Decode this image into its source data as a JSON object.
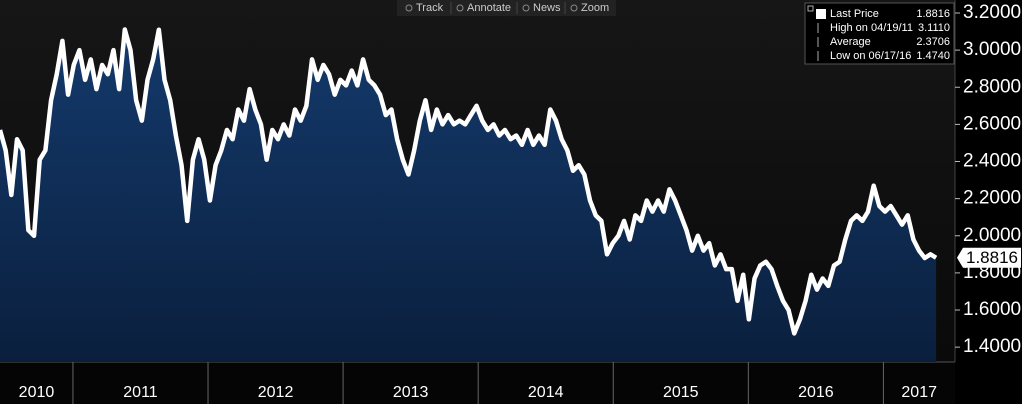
{
  "toolbar": [
    "Track",
    "Annotate",
    "News",
    "Zoom"
  ],
  "chart_data": {
    "type": "area-line",
    "xlim": [
      2010.46,
      2017.53
    ],
    "xticks": [
      2010,
      2011,
      2012,
      2013,
      2014,
      2015,
      2016,
      2017
    ],
    "ylim": [
      1.32,
      3.27
    ],
    "yticks": [
      {
        "value": 1.4,
        "label": "1.4000"
      },
      {
        "value": 1.6,
        "label": "1.6000"
      },
      {
        "value": 1.8,
        "label": "1.8000"
      },
      {
        "value": 2.0,
        "label": "2.0000"
      },
      {
        "value": 2.2,
        "label": "2.2000"
      },
      {
        "value": 2.4,
        "label": "2.4000"
      },
      {
        "value": 2.6,
        "label": "2.6000"
      },
      {
        "value": 2.8,
        "label": "2.8000"
      },
      {
        "value": 3.0,
        "label": "3.0000"
      },
      {
        "value": 3.2,
        "label": "3.2000"
      }
    ],
    "grid": false,
    "legend_items": [
      {
        "label": "Last Price",
        "value": "1.8816"
      },
      {
        "label": "High on 04/19/11",
        "value": "3.1110"
      },
      {
        "label": "Average",
        "value": "2.3706"
      },
      {
        "label": "Low on 06/17/16",
        "value": "1.4740"
      }
    ],
    "series": [
      {
        "color": "#ffffff",
        "fill": "#0f3261",
        "x": [
          2010.46,
          2010.502,
          2010.544,
          2010.586,
          2010.628,
          2010.67,
          2010.712,
          2010.754,
          2010.796,
          2010.838,
          2010.88,
          2010.922,
          2010.964,
          2011.006,
          2011.048,
          2011.09,
          2011.132,
          2011.174,
          2011.216,
          2011.258,
          2011.3,
          2011.342,
          2011.384,
          2011.426,
          2011.468,
          2011.51,
          2011.552,
          2011.594,
          2011.636,
          2011.678,
          2011.72,
          2011.762,
          2011.804,
          2011.846,
          2011.888,
          2011.93,
          2011.972,
          2012.014,
          2012.056,
          2012.098,
          2012.14,
          2012.182,
          2012.224,
          2012.266,
          2012.308,
          2012.35,
          2012.392,
          2012.434,
          2012.476,
          2012.518,
          2012.56,
          2012.602,
          2012.644,
          2012.686,
          2012.728,
          2012.77,
          2012.812,
          2012.854,
          2012.896,
          2012.938,
          2012.98,
          2013.022,
          2013.064,
          2013.106,
          2013.148,
          2013.19,
          2013.232,
          2013.274,
          2013.316,
          2013.358,
          2013.4,
          2013.442,
          2013.484,
          2013.526,
          2013.568,
          2013.61,
          2013.652,
          2013.694,
          2013.736,
          2013.778,
          2013.82,
          2013.862,
          2013.904,
          2013.946,
          2013.988,
          2014.03,
          2014.072,
          2014.114,
          2014.156,
          2014.198,
          2014.24,
          2014.282,
          2014.324,
          2014.366,
          2014.408,
          2014.45,
          2014.492,
          2014.534,
          2014.576,
          2014.618,
          2014.66,
          2014.702,
          2014.744,
          2014.786,
          2014.828,
          2014.87,
          2014.912,
          2014.954,
          2014.996,
          2015.038,
          2015.08,
          2015.122,
          2015.164,
          2015.206,
          2015.248,
          2015.29,
          2015.332,
          2015.374,
          2015.416,
          2015.458,
          2015.5,
          2015.542,
          2015.584,
          2015.626,
          2015.668,
          2015.71,
          2015.752,
          2015.794,
          2015.836,
          2015.878,
          2015.92,
          2015.962,
          2016.004,
          2016.046,
          2016.088,
          2016.13,
          2016.172,
          2016.214,
          2016.256,
          2016.298,
          2016.34,
          2016.382,
          2016.424,
          2016.466,
          2016.508,
          2016.55,
          2016.592,
          2016.634,
          2016.676,
          2016.718,
          2016.76,
          2016.802,
          2016.844,
          2016.886,
          2016.928,
          2016.97,
          2017.012,
          2017.054,
          2017.096,
          2017.138,
          2017.18,
          2017.222,
          2017.264,
          2017.306,
          2017.348,
          2017.39
        ],
        "values": [
          2.57,
          2.46,
          2.22,
          2.52,
          2.46,
          2.03,
          2.0,
          2.41,
          2.46,
          2.73,
          2.87,
          3.05,
          2.76,
          2.92,
          3.0,
          2.84,
          2.95,
          2.79,
          2.92,
          2.87,
          3.0,
          2.79,
          3.111,
          3.0,
          2.73,
          2.62,
          2.84,
          2.95,
          3.11,
          2.84,
          2.73,
          2.54,
          2.38,
          2.08,
          2.41,
          2.52,
          2.41,
          2.19,
          2.38,
          2.46,
          2.57,
          2.52,
          2.68,
          2.62,
          2.79,
          2.68,
          2.6,
          2.41,
          2.57,
          2.52,
          2.6,
          2.54,
          2.68,
          2.62,
          2.7,
          2.95,
          2.84,
          2.92,
          2.87,
          2.76,
          2.84,
          2.81,
          2.89,
          2.81,
          2.95,
          2.84,
          2.81,
          2.76,
          2.65,
          2.68,
          2.52,
          2.41,
          2.33,
          2.46,
          2.62,
          2.73,
          2.57,
          2.68,
          2.6,
          2.65,
          2.6,
          2.62,
          2.6,
          2.65,
          2.7,
          2.62,
          2.57,
          2.6,
          2.54,
          2.57,
          2.52,
          2.54,
          2.49,
          2.57,
          2.49,
          2.54,
          2.49,
          2.68,
          2.62,
          2.52,
          2.46,
          2.35,
          2.38,
          2.33,
          2.19,
          2.11,
          2.08,
          1.9,
          1.96,
          2.0,
          2.08,
          1.98,
          2.11,
          2.08,
          2.19,
          2.13,
          2.19,
          2.13,
          2.25,
          2.19,
          2.11,
          2.03,
          1.92,
          2.0,
          1.92,
          1.96,
          1.84,
          1.9,
          1.82,
          1.82,
          1.65,
          1.79,
          1.55,
          1.77,
          1.84,
          1.86,
          1.82,
          1.73,
          1.65,
          1.6,
          1.474,
          1.55,
          1.65,
          1.79,
          1.71,
          1.77,
          1.73,
          1.84,
          1.86,
          1.98,
          2.08,
          2.11,
          2.08,
          2.13,
          2.27,
          2.16,
          2.13,
          2.16,
          2.11,
          2.06,
          2.11,
          1.98,
          1.92,
          1.88,
          1.9,
          1.8816
        ]
      }
    ]
  }
}
